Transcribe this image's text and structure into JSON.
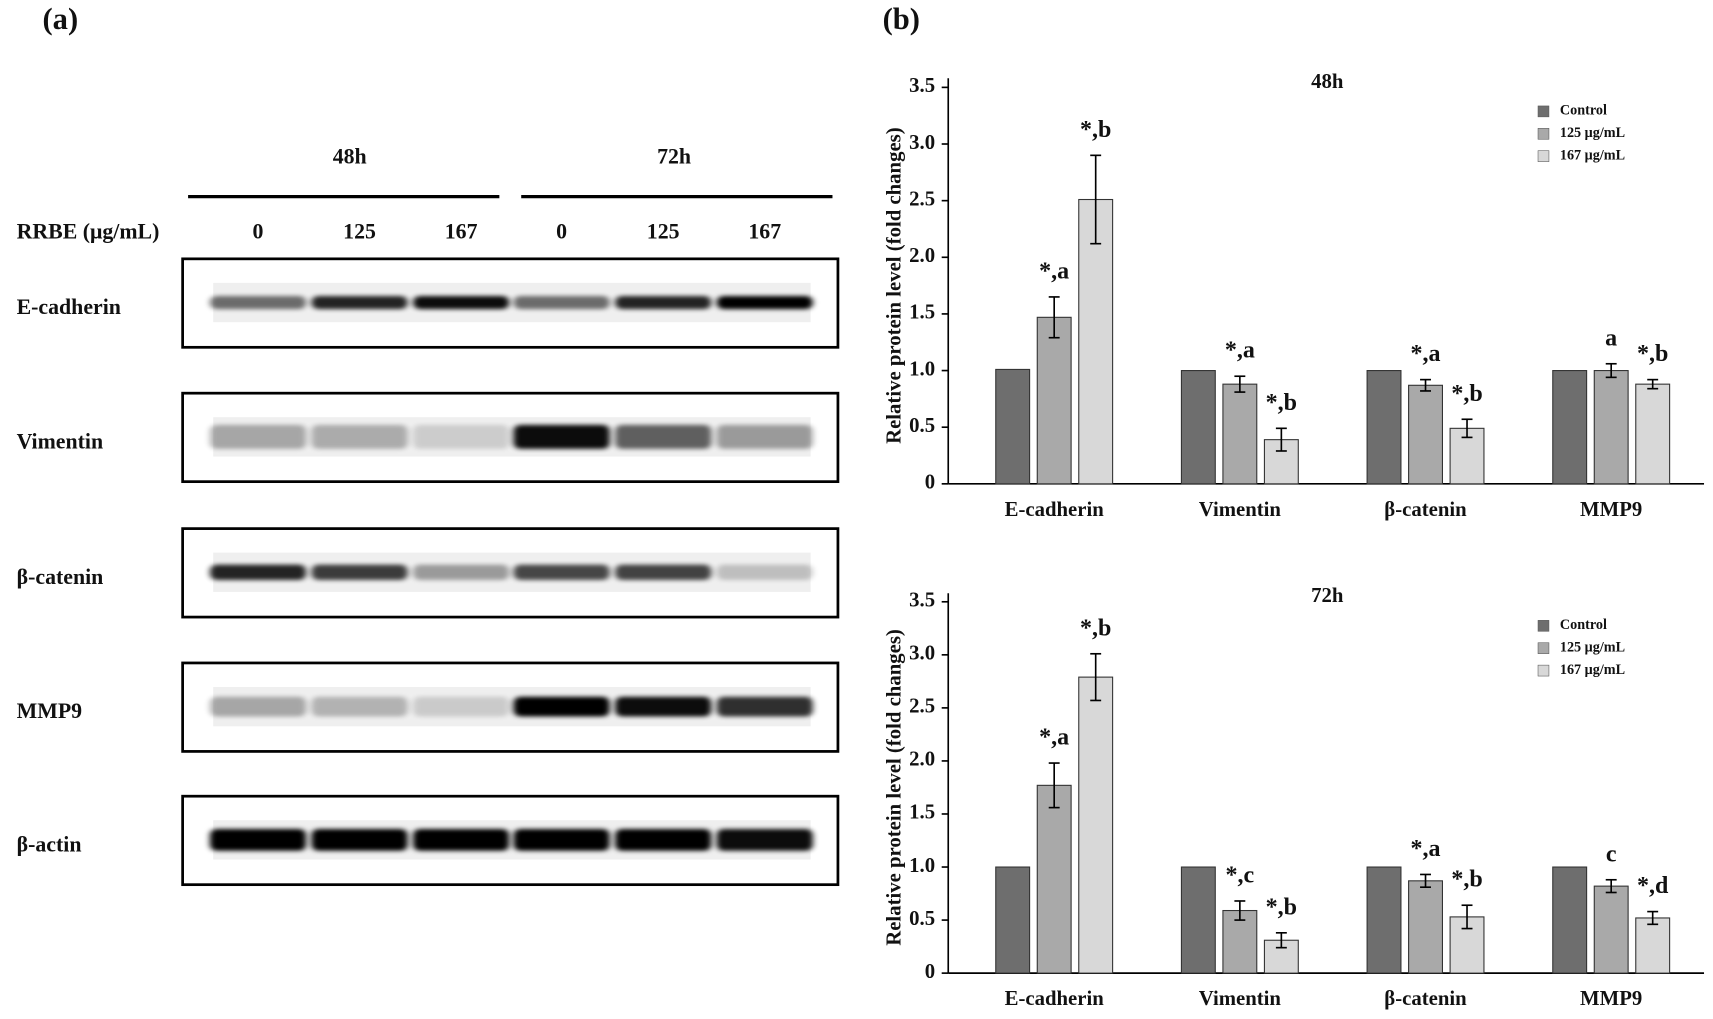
{
  "panel_labels": [
    "(a)",
    "(b)"
  ],
  "blot": {
    "time_labels": [
      "48h",
      "72h"
    ],
    "dose_header": "RRBE (μg/mL)",
    "doses": [
      0,
      125,
      167,
      0,
      125,
      167
    ],
    "proteins": [
      "E-cadherin",
      "Vimentin",
      "β-catenin",
      "MMP9",
      "β-actin"
    ]
  },
  "chart_data": [
    {
      "type": "bar",
      "title": "48h",
      "y_label": "Relative protein level (fold changes)",
      "categories": [
        "E-cadherin",
        "Vimentin",
        "β-catenin",
        "MMP9"
      ],
      "series": [
        {
          "name": "Control",
          "color": "#6e6e6e",
          "values": [
            1.01,
            1.0,
            1.0,
            1.0
          ]
        },
        {
          "name": "125 μg/mL",
          "color": "#a9a9a9",
          "values": [
            1.47,
            0.88,
            0.87,
            1.0
          ],
          "errors": [
            0.18,
            0.07,
            0.05,
            0.06
          ],
          "annotations": [
            "*,a",
            "*,a",
            "*,a",
            "a"
          ]
        },
        {
          "name": "167 μg/mL",
          "color": "#d8d8d8",
          "values": [
            2.51,
            0.39,
            0.49,
            0.88
          ],
          "errors": [
            0.39,
            0.1,
            0.08,
            0.04
          ],
          "annotations": [
            "*,b",
            "*,b",
            "*,b",
            "*,b"
          ]
        }
      ],
      "ylim": [
        0,
        3.58
      ],
      "yticks": [
        0,
        0.5,
        {
          "value": 1,
          "label": "1.0"
        },
        1.5,
        {
          "value": 2,
          "label": "2.0"
        },
        2.5,
        {
          "value": 3,
          "label": "3.0"
        },
        3.5
      ]
    },
    {
      "type": "bar",
      "title": "72h",
      "y_label": "Relative protein level (fold changes)",
      "categories": [
        "E-cadherin",
        "Vimentin",
        "β-catenin",
        "MMP9"
      ],
      "series": [
        {
          "name": "Control",
          "color": "#6e6e6e",
          "values": [
            1.0,
            1.0,
            1.0,
            1.0
          ]
        },
        {
          "name": "125 μg/mL",
          "color": "#a9a9a9",
          "values": [
            1.77,
            0.59,
            0.87,
            0.82
          ],
          "errors": [
            0.21,
            0.09,
            0.06,
            0.06
          ],
          "annotations": [
            "*,a",
            "*,c",
            "*,a",
            "c"
          ]
        },
        {
          "name": "167 μg/mL",
          "color": "#d8d8d8",
          "values": [
            2.79,
            0.31,
            0.53,
            0.52
          ],
          "errors": [
            0.22,
            0.07,
            0.11,
            0.06
          ],
          "annotations": [
            "*,b",
            "*,b",
            "*,b",
            "*,d"
          ]
        }
      ],
      "ylim": [
        0,
        3.58
      ],
      "yticks": [
        0,
        0.5,
        {
          "value": 1,
          "label": "1.0"
        },
        1.5,
        {
          "value": 2,
          "label": "2.0"
        },
        2.5,
        {
          "value": 3,
          "label": "3.0"
        },
        3.5
      ]
    }
  ]
}
